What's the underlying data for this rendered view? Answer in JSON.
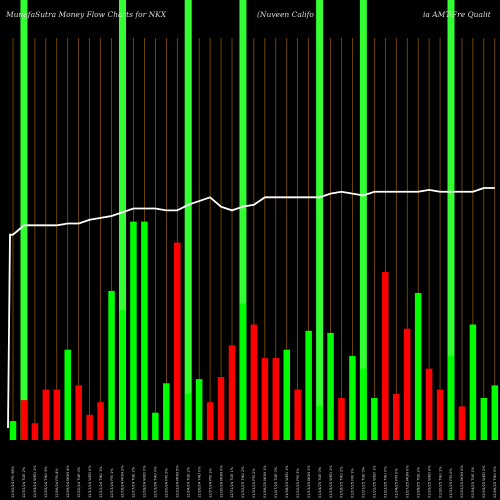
{
  "title_left": "MunafaSutra  Money  Flow  Charts for NKX",
  "title_middle": "(Nuveen  Califo",
  "title_right": "ia  AMT-Fre  Qualit",
  "chart_data": {
    "type": "bar",
    "title": "MunafaSutra Money Flow Charts for NKX (Nuveen California AMT-Free Quality...)",
    "categories": [
      "12/02/24 FRi 98%",
      "12/03/24 TUE 2%",
      "12/04/24 WED 1%",
      "12/05/24 THU 3%",
      "12/06/24 FRI 4%",
      "12/09/24 MON 4%",
      "12/10/24 TUE 0%",
      "12/11/24 WED 0%",
      "12/12/24 THU 1%",
      "12/13/24 FRI 1%",
      "12/16/24 MON 2%",
      "12/17/24 TUE 2%",
      "12/18/24 WED 0%",
      "12/19/24 THU 0%",
      "12/20/24 FRI 2%",
      "12/23/24 MON 5%",
      "12/24/24 TUE 2%",
      "12/26/24 THU 0%",
      "12/27/24 FRI 1%",
      "12/30/24 MON 0%",
      "12/31/24 TUE 1%",
      "01/02/25 THU 2%",
      "01/03/25 FRI 2%",
      "01/06/25 MON 1%",
      "01/07/25 TUE 0%",
      "01/08/25 WED 1%",
      "01/10/25 FRI 3%",
      "01/13/25 MON 1%",
      "01/14/25 TUE 0%",
      "01/15/25 WED 1%",
      "01/16/25 THU 2%",
      "01/17/25 FRI 1%",
      "01/21/25 TUE 0%",
      "01/22/25 WED 1%",
      "01/23/25 THU 0%",
      "01/24/25 FRI 0%",
      "01/27/25 MON 0%",
      "01/28/25 TUE 2%",
      "01/29/25 WED 0%",
      "01/30/25 THU 1%",
      "01/31/25 FRI 0%",
      "02/03/25 MON 2%",
      "02/04/25 TUE 1%",
      "02/05/25 WED 2%",
      "02/06/25 THU 0%"
    ],
    "x_labels": [
      "12/02/24 FRi 98%",
      "12/03/24 TUE 2%",
      "12/04/24 WED 1%",
      "12/05/24 THU 3%",
      "12/06/24 FRI 4%",
      "12/09/24 MON 4%",
      "12/10/24 TUE 0%",
      "12/11/24 WED 0%",
      "12/12/24 THU 1%",
      "12/13/24 FRI 1%",
      "12/16/24 MON 2%",
      "12/17/24 TUE 2%",
      "12/18/24 WED 0%",
      "12/19/24 THU 0%",
      "12/20/24 FRI 2%",
      "12/23/24 MON 5%",
      "12/24/24 TUE 2%",
      "12/26/24 THU 0%",
      "12/27/24 FRI 1%",
      "12/30/24 MON 0%",
      "12/31/24 TUE 1%",
      "01/02/25 THU 2%",
      "01/03/25 FRI 2%",
      "01/06/25 MON 1%",
      "01/07/25 TUE 0%",
      "01/08/25 WED 1%",
      "01/10/25 FRI 3%",
      "01/13/25 MON 1%",
      "01/14/25 TUE 0%",
      "01/15/25 WED 1%",
      "01/16/25 THU 2%",
      "01/17/25 FRI 1%",
      "01/21/25 TUE 0%",
      "01/22/25 WED 1%",
      "01/23/25 THU 0%",
      "01/24/25 FRI 0%",
      "01/27/25 MON 0%",
      "01/28/25 TUE 2%",
      "01/29/25 WED 0%",
      "01/30/25 THU 1%",
      "01/31/25 FRI 0%",
      "02/03/25 MON 2%",
      "02/04/25 TUE 1%",
      "02/05/25 WED 2%",
      "02/06/25 THU 0%"
    ],
    "bar_heights": [
      4.5,
      9.5,
      4,
      12,
      12,
      21.5,
      13,
      6,
      9,
      35.5,
      31,
      52,
      52,
      6.5,
      13.5,
      47,
      11,
      14.5,
      9,
      15,
      22.5,
      32.5,
      27.5,
      19.5,
      19.5,
      21.5,
      12,
      26,
      8,
      25.5,
      10,
      20,
      17,
      10,
      40,
      11,
      26.5,
      35,
      17,
      12,
      20,
      8,
      27.5,
      10,
      13
    ],
    "bar_colors": [
      "green",
      "red",
      "red",
      "red",
      "red",
      "green",
      "red",
      "red",
      "red",
      "green",
      "green",
      "green",
      "green",
      "green",
      "green",
      "red",
      "green",
      "green",
      "red",
      "red",
      "red",
      "green",
      "red",
      "red",
      "red",
      "green",
      "red",
      "green",
      "green",
      "green",
      "red",
      "green",
      "green",
      "green",
      "red",
      "red",
      "red",
      "green",
      "red",
      "red",
      "green",
      "red",
      "green",
      "green",
      "green"
    ],
    "price_line": [
      57,
      57.5,
      57.5,
      57.5,
      57.5,
      57.6,
      57.6,
      57.8,
      57.9,
      58.0,
      58.2,
      58.4,
      58.4,
      58.4,
      58.3,
      58.3,
      58.6,
      58.8,
      59.0,
      58.5,
      58.3,
      58.5,
      58.6,
      59.0,
      59.0,
      59.0,
      59.0,
      59.0,
      59.0,
      59.2,
      59.3,
      59.2,
      59.1,
      59.3,
      59.3,
      59.3,
      59.3,
      59.3,
      59.4,
      59.3,
      59.3,
      59.3,
      59.3,
      59.5,
      59.5
    ],
    "highlight_columns": [
      1,
      10,
      16,
      21,
      28,
      32,
      40
    ],
    "colors": {
      "background": "#000000",
      "up_bar": "#00ff00",
      "down_bar": "#ff0000",
      "line": "#ffffff",
      "highlight": "#33ff33",
      "grid": "#c87a00",
      "text": "#dddddd"
    }
  }
}
